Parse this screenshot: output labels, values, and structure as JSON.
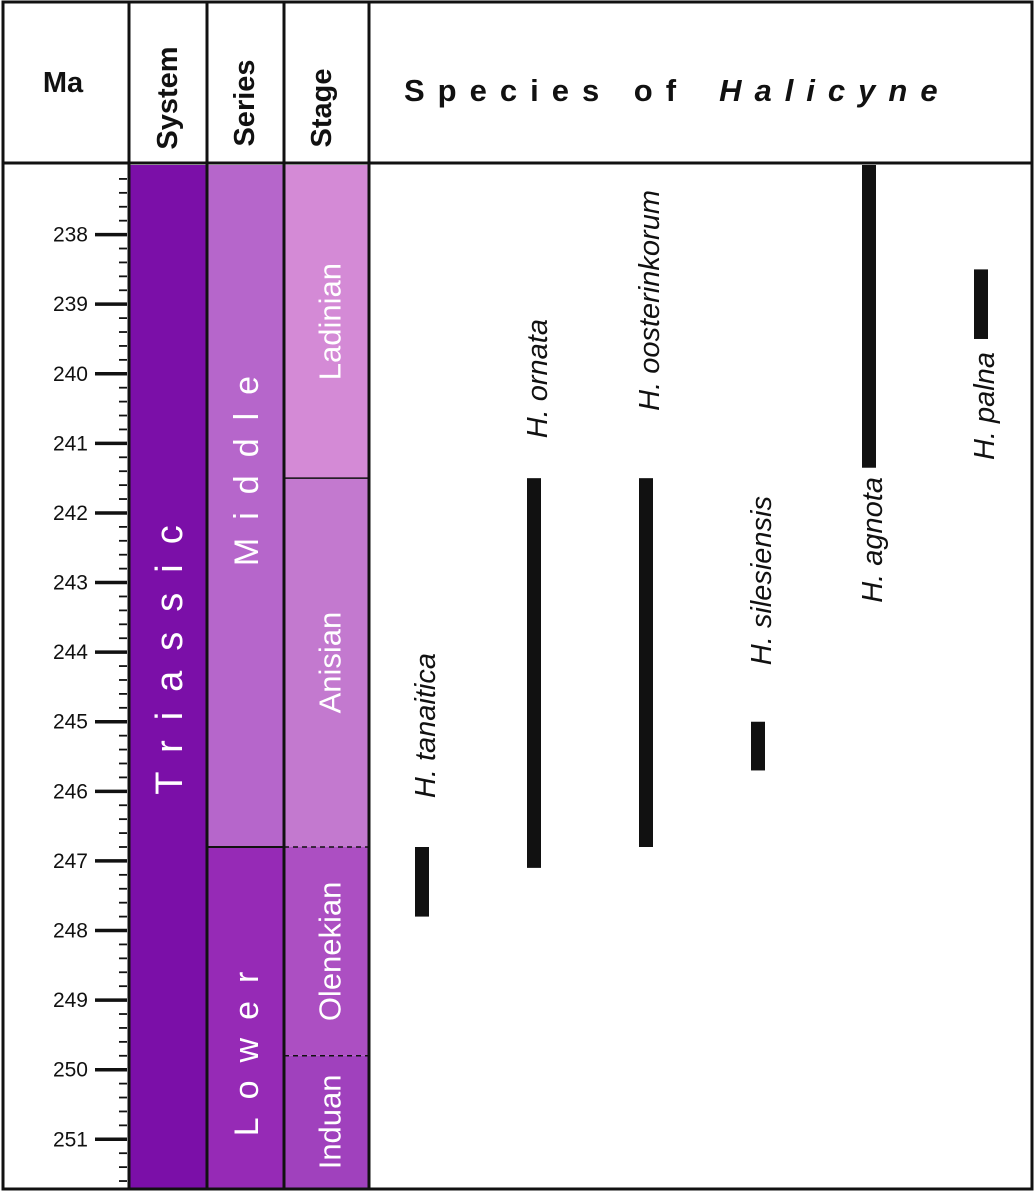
{
  "chart_data": {
    "type": "range",
    "y_unit_label": "Ma",
    "ylim": [
      237,
      251.7
    ],
    "y_ticks": [
      238,
      239,
      240,
      241,
      242,
      243,
      244,
      245,
      246,
      247,
      248,
      249,
      250,
      251
    ],
    "minor_tick_step": 0.2,
    "columns": {
      "system": "System",
      "series": "Series",
      "stage": "Stage",
      "species_prefix": "Species of",
      "species_genus": "Halicyne"
    },
    "system": [
      {
        "name": "Triassic",
        "top": 237,
        "base": 251.7,
        "color": "#7b0fa8"
      }
    ],
    "series": [
      {
        "name": "Middle",
        "top": 237,
        "base": 246.8,
        "color": "#b666cb"
      },
      {
        "name": "Lower",
        "top": 246.8,
        "base": 251.7,
        "color": "#962ab6"
      }
    ],
    "stages": [
      {
        "name": "Ladinian",
        "top": 237,
        "base": 241.5,
        "color": "#d48ad6"
      },
      {
        "name": "Anisian",
        "top": 241.5,
        "base": 246.8,
        "color": "#c379cf"
      },
      {
        "name": "Olenekian",
        "top": 246.8,
        "base": 249.8,
        "color": "#ac4fc2"
      },
      {
        "name": "Induan",
        "top": 249.8,
        "base": 251.7,
        "color": "#a041bd"
      }
    ],
    "species": [
      {
        "name": "H. tanaitica",
        "from": 246.8,
        "to": 247.8
      },
      {
        "name": "H. ornata",
        "from": 241.5,
        "to": 247.1
      },
      {
        "name": "H. oosterinkorum",
        "from": 241.5,
        "to": 246.8
      },
      {
        "name": "H. silesiensis",
        "from": 245.0,
        "to": 245.7
      },
      {
        "name": "H. agnota",
        "from": 237,
        "to": 241.35
      },
      {
        "name": "H. palna",
        "from": 238.5,
        "to": 239.5
      }
    ]
  }
}
